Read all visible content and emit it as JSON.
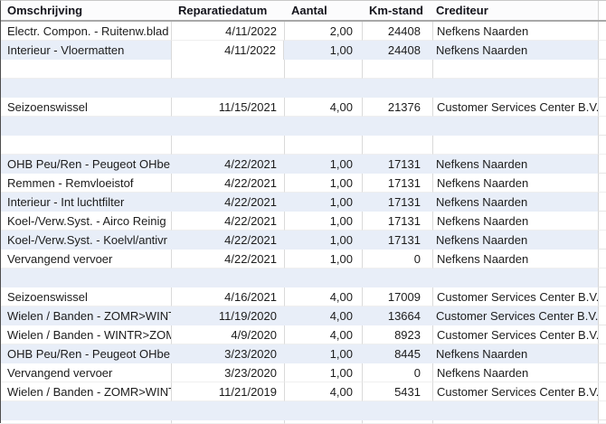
{
  "table": {
    "columns": [
      {
        "key": "omschrijving",
        "label": "Omschrijving"
      },
      {
        "key": "reparatiedatum",
        "label": "Reparatiedatum"
      },
      {
        "key": "aantal",
        "label": "Aantal"
      },
      {
        "key": "km_stand",
        "label": "Km-stand"
      },
      {
        "key": "crediteur",
        "label": "Crediteur"
      }
    ],
    "rows": [
      {
        "omschrijving": "Electr. Compon. - Ruitenw.blad",
        "reparatiedatum": "4/11/2022",
        "aantal": "2,00",
        "km_stand": "24408",
        "crediteur": "Nefkens Naarden",
        "band": "white"
      },
      {
        "omschrijving": "Interieur - Vloermatten",
        "reparatiedatum": "4/11/2022",
        "aantal": "1,00",
        "km_stand": "24408",
        "crediteur": "Nefkens Naarden",
        "band": "blue",
        "date_cell_white": true
      },
      {
        "omschrijving": "",
        "reparatiedatum": "",
        "aantal": "",
        "km_stand": "",
        "crediteur": "",
        "band": "white",
        "empty": true
      },
      {
        "omschrijving": "",
        "reparatiedatum": "",
        "aantal": "",
        "km_stand": "",
        "crediteur": "",
        "band": "blue",
        "empty": true
      },
      {
        "omschrijving": "Seizoenswissel",
        "reparatiedatum": "11/15/2021",
        "aantal": "4,00",
        "km_stand": "21376",
        "crediteur": "Customer Services Center B.V.",
        "band": "white"
      },
      {
        "omschrijving": "",
        "reparatiedatum": "",
        "aantal": "",
        "km_stand": "",
        "crediteur": "",
        "band": "blue",
        "empty": true
      },
      {
        "omschrijving": "",
        "reparatiedatum": "",
        "aantal": "",
        "km_stand": "",
        "crediteur": "",
        "band": "white",
        "empty": true
      },
      {
        "omschrijving": "OHB Peu/Ren - Peugeot OHbe",
        "reparatiedatum": "4/22/2021",
        "aantal": "1,00",
        "km_stand": "17131",
        "crediteur": "Nefkens Naarden",
        "band": "blue"
      },
      {
        "omschrijving": "Remmen - Remvloeistof",
        "reparatiedatum": "4/22/2021",
        "aantal": "1,00",
        "km_stand": "17131",
        "crediteur": "Nefkens Naarden",
        "band": "white"
      },
      {
        "omschrijving": "Interieur - Int luchtfilter",
        "reparatiedatum": "4/22/2021",
        "aantal": "1,00",
        "km_stand": "17131",
        "crediteur": "Nefkens Naarden",
        "band": "blue"
      },
      {
        "omschrijving": "Koel-/Verw.Syst. - Airco Reinig",
        "reparatiedatum": "4/22/2021",
        "aantal": "1,00",
        "km_stand": "17131",
        "crediteur": "Nefkens Naarden",
        "band": "white"
      },
      {
        "omschrijving": "Koel-/Verw.Syst. - Koelvl/antivr",
        "reparatiedatum": "4/22/2021",
        "aantal": "1,00",
        "km_stand": "17131",
        "crediteur": "Nefkens Naarden",
        "band": "blue"
      },
      {
        "omschrijving": "Vervangend vervoer",
        "reparatiedatum": "4/22/2021",
        "aantal": "1,00",
        "km_stand": "0",
        "crediteur": "Nefkens Naarden",
        "band": "white"
      },
      {
        "omschrijving": "",
        "reparatiedatum": "",
        "aantal": "",
        "km_stand": "",
        "crediteur": "",
        "band": "blue",
        "empty": true
      },
      {
        "omschrijving": "Seizoenswissel",
        "reparatiedatum": "4/16/2021",
        "aantal": "4,00",
        "km_stand": "17009",
        "crediteur": "Customer Services Center B.V.",
        "band": "white"
      },
      {
        "omschrijving": "Wielen / Banden - ZOMR>WINT",
        "reparatiedatum": "11/19/2020",
        "aantal": "4,00",
        "km_stand": "13664",
        "crediteur": "Customer Services Center B.V.",
        "band": "blue"
      },
      {
        "omschrijving": "Wielen / Banden - WINTR>ZOM",
        "reparatiedatum": "4/9/2020",
        "aantal": "4,00",
        "km_stand": "8923",
        "crediteur": "Customer Services Center B.V.",
        "band": "white"
      },
      {
        "omschrijving": "OHB Peu/Ren - Peugeot OHbe",
        "reparatiedatum": "3/23/2020",
        "aantal": "1,00",
        "km_stand": "8445",
        "crediteur": "Nefkens Naarden",
        "band": "blue"
      },
      {
        "omschrijving": "Vervangend vervoer",
        "reparatiedatum": "3/23/2020",
        "aantal": "1,00",
        "km_stand": "0",
        "crediteur": "Nefkens Naarden",
        "band": "white"
      },
      {
        "omschrijving": "Wielen / Banden - ZOMR>WINT",
        "reparatiedatum": "11/21/2019",
        "aantal": "4,00",
        "km_stand": "5431",
        "crediteur": "Customer Services Center B.V.",
        "band": "white"
      },
      {
        "omschrijving": "",
        "reparatiedatum": "",
        "aantal": "",
        "km_stand": "",
        "crediteur": "",
        "band": "blue",
        "empty": true
      },
      {
        "omschrijving": "",
        "reparatiedatum": "",
        "aantal": "",
        "km_stand": "",
        "crediteur": "",
        "band": "white",
        "empty": true,
        "partial": true
      }
    ],
    "colors": {
      "band_blue": "#e8eef8",
      "gridline": "#d9d9d9",
      "header_border": "#a8a8a8",
      "header_text": "#14141c",
      "body_text": "#1c1c1c"
    }
  }
}
